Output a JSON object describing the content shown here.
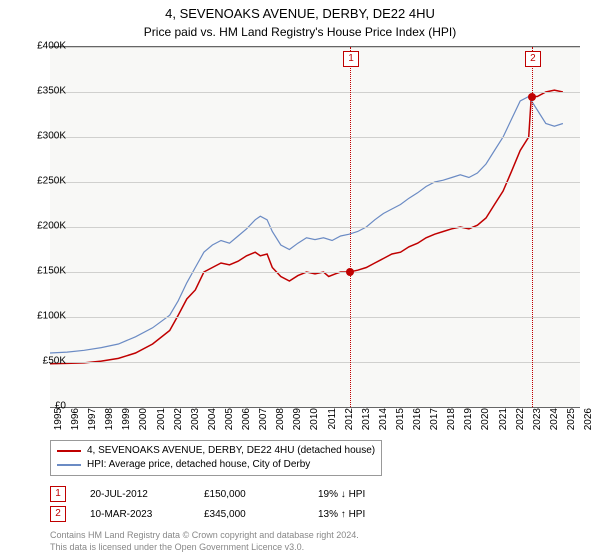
{
  "title": "4, SEVENOAKS AVENUE, DERBY, DE22 4HU",
  "subtitle": "Price paid vs. HM Land Registry's House Price Index (HPI)",
  "chart": {
    "type": "line",
    "background_color": "#f8f8f6",
    "grid_color": "#d0d0ce",
    "ylim": [
      0,
      400000
    ],
    "ytick_step": 50000,
    "yticks": [
      "£0",
      "£50K",
      "£100K",
      "£150K",
      "£200K",
      "£250K",
      "£300K",
      "£350K",
      "£400K"
    ],
    "xlim": [
      1995,
      2026
    ],
    "xticks": [
      1995,
      1996,
      1997,
      1998,
      1999,
      2000,
      2001,
      2002,
      2003,
      2004,
      2005,
      2006,
      2007,
      2008,
      2009,
      2010,
      2011,
      2012,
      2013,
      2014,
      2015,
      2016,
      2017,
      2018,
      2019,
      2020,
      2021,
      2022,
      2023,
      2024,
      2025,
      2026
    ],
    "series": [
      {
        "name": "price_paid",
        "label": "4, SEVENOAKS AVENUE, DERBY, DE22 4HU (detached house)",
        "color": "#c00000",
        "line_width": 1.5,
        "points": [
          [
            1995,
            48000
          ],
          [
            1996,
            48500
          ],
          [
            1997,
            49000
          ],
          [
            1998,
            51000
          ],
          [
            1999,
            54000
          ],
          [
            2000,
            60000
          ],
          [
            2001,
            70000
          ],
          [
            2002,
            85000
          ],
          [
            2002.5,
            102000
          ],
          [
            2003,
            120000
          ],
          [
            2003.5,
            130000
          ],
          [
            2004,
            150000
          ],
          [
            2004.5,
            155000
          ],
          [
            2005,
            160000
          ],
          [
            2005.5,
            158000
          ],
          [
            2006,
            162000
          ],
          [
            2006.5,
            168000
          ],
          [
            2007,
            172000
          ],
          [
            2007.3,
            168000
          ],
          [
            2007.7,
            170000
          ],
          [
            2008,
            155000
          ],
          [
            2008.5,
            145000
          ],
          [
            2009,
            140000
          ],
          [
            2009.5,
            146000
          ],
          [
            2010,
            150000
          ],
          [
            2010.5,
            148000
          ],
          [
            2011,
            150000
          ],
          [
            2011.3,
            145000
          ],
          [
            2011.7,
            148000
          ],
          [
            2012,
            150000
          ],
          [
            2012.5,
            150000
          ],
          [
            2013,
            152000
          ],
          [
            2013.5,
            155000
          ],
          [
            2014,
            160000
          ],
          [
            2014.5,
            165000
          ],
          [
            2015,
            170000
          ],
          [
            2015.5,
            172000
          ],
          [
            2016,
            178000
          ],
          [
            2016.5,
            182000
          ],
          [
            2017,
            188000
          ],
          [
            2017.5,
            192000
          ],
          [
            2018,
            195000
          ],
          [
            2018.5,
            198000
          ],
          [
            2019,
            200000
          ],
          [
            2019.5,
            198000
          ],
          [
            2020,
            202000
          ],
          [
            2020.5,
            210000
          ],
          [
            2021,
            225000
          ],
          [
            2021.5,
            240000
          ],
          [
            2022,
            262000
          ],
          [
            2022.5,
            285000
          ],
          [
            2023,
            300000
          ],
          [
            2023.15,
            345000
          ],
          [
            2023.5,
            345000
          ],
          [
            2024,
            350000
          ],
          [
            2024.5,
            352000
          ],
          [
            2025,
            350000
          ]
        ]
      },
      {
        "name": "hpi",
        "label": "HPI: Average price, detached house, City of Derby",
        "color": "#6b8bc4",
        "line_width": 1.2,
        "points": [
          [
            1995,
            60000
          ],
          [
            1996,
            61000
          ],
          [
            1997,
            63000
          ],
          [
            1998,
            66000
          ],
          [
            1999,
            70000
          ],
          [
            2000,
            78000
          ],
          [
            2001,
            88000
          ],
          [
            2002,
            102000
          ],
          [
            2002.5,
            118000
          ],
          [
            2003,
            138000
          ],
          [
            2003.5,
            155000
          ],
          [
            2004,
            172000
          ],
          [
            2004.5,
            180000
          ],
          [
            2005,
            185000
          ],
          [
            2005.5,
            182000
          ],
          [
            2006,
            190000
          ],
          [
            2006.5,
            198000
          ],
          [
            2007,
            208000
          ],
          [
            2007.3,
            212000
          ],
          [
            2007.7,
            208000
          ],
          [
            2008,
            195000
          ],
          [
            2008.5,
            180000
          ],
          [
            2009,
            175000
          ],
          [
            2009.5,
            182000
          ],
          [
            2010,
            188000
          ],
          [
            2010.5,
            186000
          ],
          [
            2011,
            188000
          ],
          [
            2011.5,
            185000
          ],
          [
            2012,
            190000
          ],
          [
            2012.5,
            192000
          ],
          [
            2013,
            195000
          ],
          [
            2013.5,
            200000
          ],
          [
            2014,
            208000
          ],
          [
            2014.5,
            215000
          ],
          [
            2015,
            220000
          ],
          [
            2015.5,
            225000
          ],
          [
            2016,
            232000
          ],
          [
            2016.5,
            238000
          ],
          [
            2017,
            245000
          ],
          [
            2017.5,
            250000
          ],
          [
            2018,
            252000
          ],
          [
            2018.5,
            255000
          ],
          [
            2019,
            258000
          ],
          [
            2019.5,
            255000
          ],
          [
            2020,
            260000
          ],
          [
            2020.5,
            270000
          ],
          [
            2021,
            285000
          ],
          [
            2021.5,
            300000
          ],
          [
            2022,
            320000
          ],
          [
            2022.5,
            340000
          ],
          [
            2023,
            345000
          ],
          [
            2023.5,
            330000
          ],
          [
            2024,
            315000
          ],
          [
            2024.5,
            312000
          ],
          [
            2025,
            315000
          ]
        ]
      }
    ],
    "markers": [
      {
        "n": "1",
        "x": 2012.55,
        "y": 150000
      },
      {
        "n": "2",
        "x": 2023.19,
        "y": 345000
      }
    ]
  },
  "transactions": [
    {
      "n": "1",
      "date": "20-JUL-2012",
      "price": "£150,000",
      "delta": "19% ↓ HPI"
    },
    {
      "n": "2",
      "date": "10-MAR-2023",
      "price": "£345,000",
      "delta": "13% ↑ HPI"
    }
  ],
  "footnote_line1": "Contains HM Land Registry data © Crown copyright and database right 2024.",
  "footnote_line2": "This data is licensed under the Open Government Licence v3.0.",
  "label_fontsize": 10,
  "title_fontsize": 13
}
